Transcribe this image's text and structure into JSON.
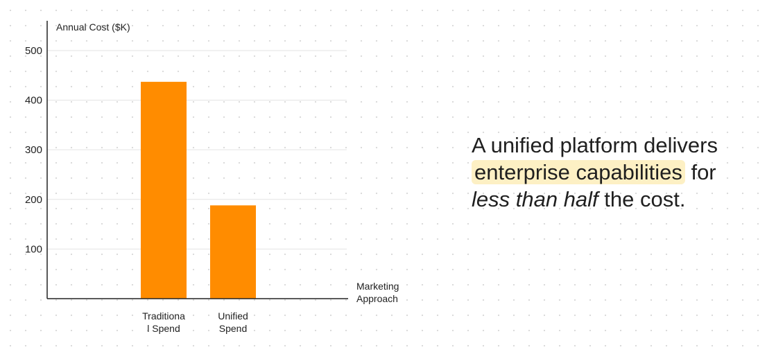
{
  "chart_data": {
    "type": "bar",
    "ylabel": "Annual Cost ($K)",
    "xlabel_lines": [
      "Marketing",
      "Approach"
    ],
    "categories": [
      {
        "name": "Traditional Spend",
        "lines": [
          "Traditiona",
          "l Spend"
        ]
      },
      {
        "name": "Unified Spend",
        "lines": [
          "Unified",
          "Spend"
        ]
      }
    ],
    "values": [
      437,
      188
    ],
    "ylim": [
      0,
      560
    ],
    "yticks": [
      100,
      200,
      300,
      400,
      500
    ],
    "grid": true,
    "bar_color": "#ff8c00"
  },
  "headline": {
    "part1": "A unified platform delivers",
    "highlight": "enterprise capabilities",
    "part2": "for",
    "emphasis": "less than half",
    "part3": "the cost."
  }
}
